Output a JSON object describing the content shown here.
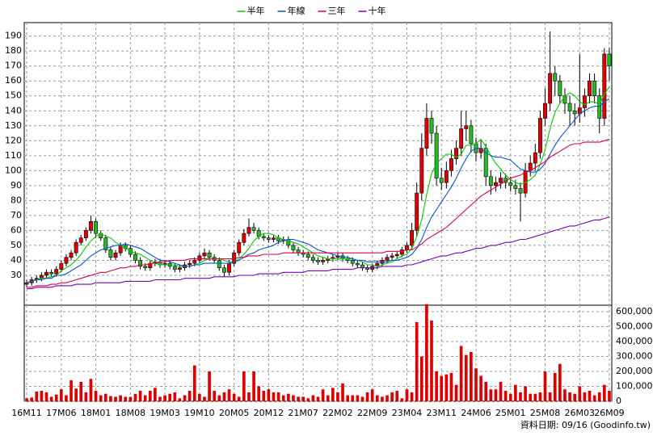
{
  "chart_data": {
    "type": "candlestick",
    "categories": [
      "16M11",
      null,
      null,
      null,
      null,
      null,
      null,
      "17M06",
      null,
      null,
      null,
      null,
      null,
      null,
      "18M01",
      null,
      null,
      null,
      null,
      null,
      null,
      "18M08",
      null,
      null,
      null,
      null,
      null,
      null,
      "19M03",
      null,
      null,
      null,
      null,
      null,
      null,
      "19M10",
      null,
      null,
      null,
      null,
      null,
      null,
      "20M05",
      null,
      null,
      null,
      null,
      null,
      null,
      "20M12",
      null,
      null,
      null,
      null,
      null,
      null,
      "21M07",
      null,
      null,
      null,
      null,
      null,
      null,
      "22M02",
      null,
      null,
      null,
      null,
      null,
      null,
      "22M09",
      null,
      null,
      null,
      null,
      null,
      null,
      "23M04",
      null,
      null,
      null,
      null,
      null,
      null,
      "23M11",
      null,
      null,
      null,
      null,
      null,
      null,
      "24M06",
      null,
      null,
      null,
      null,
      null,
      null,
      "25M01",
      null,
      null,
      null,
      null,
      null,
      null,
      "25M08",
      null,
      null,
      null,
      null,
      null,
      null,
      "26M03",
      null,
      null,
      null,
      null,
      null,
      "26M09"
    ],
    "open": [
      24,
      25,
      27,
      28,
      30,
      32,
      31,
      34,
      38,
      42,
      45,
      52,
      55,
      60,
      66,
      58,
      55,
      47,
      42,
      45,
      50,
      48,
      44,
      40,
      36,
      35,
      38,
      39,
      37,
      38,
      36,
      34,
      35,
      37,
      38,
      40,
      43,
      45,
      42,
      40,
      35,
      32,
      38,
      45,
      52,
      58,
      62,
      60,
      56,
      55,
      54,
      55,
      53,
      54,
      50,
      47,
      45,
      44,
      42,
      40,
      39,
      40,
      41,
      42,
      43,
      41,
      40,
      38,
      37,
      35,
      34,
      36,
      38,
      40,
      42,
      43,
      44,
      47,
      50,
      60,
      85,
      115,
      135,
      125,
      95,
      92,
      100,
      108,
      115,
      128,
      130,
      118,
      112,
      115,
      96,
      90,
      92,
      95,
      92,
      90,
      88,
      85,
      100,
      105,
      112,
      135,
      145,
      165,
      160,
      150,
      145,
      140,
      138,
      142,
      150,
      160,
      150,
      135,
      178
    ],
    "high": [
      27,
      29,
      30,
      32,
      34,
      34,
      36,
      40,
      44,
      47,
      54,
      57,
      62,
      70,
      68,
      60,
      57,
      49,
      47,
      52,
      52,
      50,
      46,
      42,
      38,
      40,
      41,
      41,
      40,
      40,
      38,
      37,
      39,
      40,
      42,
      45,
      48,
      47,
      44,
      42,
      37,
      40,
      47,
      54,
      61,
      68,
      65,
      62,
      58,
      57,
      57,
      57,
      56,
      56,
      52,
      49,
      47,
      46,
      44,
      42,
      42,
      43,
      44,
      45,
      45,
      43,
      42,
      40,
      39,
      37,
      38,
      40,
      42,
      44,
      45,
      46,
      49,
      52,
      65,
      92,
      125,
      145,
      140,
      130,
      102,
      106,
      114,
      120,
      140,
      140,
      134,
      122,
      120,
      118,
      100,
      96,
      99,
      98,
      96,
      94,
      92,
      105,
      110,
      118,
      140,
      155,
      193,
      170,
      164,
      155,
      150,
      145,
      178,
      155,
      165,
      165,
      155,
      182,
      182
    ],
    "low": [
      22,
      23,
      25,
      26,
      28,
      29,
      29,
      32,
      36,
      40,
      43,
      50,
      53,
      58,
      55,
      53,
      45,
      40,
      40,
      43,
      46,
      42,
      38,
      34,
      33,
      33,
      36,
      35,
      35,
      34,
      32,
      32,
      33,
      35,
      36,
      38,
      41,
      40,
      38,
      33,
      29,
      30,
      36,
      43,
      50,
      56,
      58,
      54,
      53,
      52,
      52,
      51,
      51,
      48,
      45,
      43,
      42,
      40,
      38,
      37,
      37,
      38,
      39,
      40,
      39,
      38,
      36,
      35,
      33,
      32,
      32,
      34,
      36,
      38,
      40,
      41,
      42,
      45,
      47,
      56,
      80,
      110,
      118,
      90,
      87,
      88,
      96,
      104,
      110,
      120,
      112,
      106,
      108,
      90,
      84,
      86,
      88,
      88,
      86,
      84,
      66,
      82,
      96,
      100,
      108,
      130,
      140,
      150,
      145,
      138,
      130,
      130,
      132,
      136,
      145,
      145,
      125,
      130,
      160
    ],
    "close": [
      25,
      27,
      28,
      30,
      32,
      31,
      34,
      38,
      42,
      45,
      52,
      55,
      60,
      66,
      58,
      55,
      47,
      42,
      45,
      50,
      48,
      44,
      40,
      36,
      35,
      38,
      39,
      37,
      38,
      36,
      34,
      35,
      37,
      38,
      40,
      43,
      45,
      42,
      40,
      35,
      32,
      38,
      45,
      52,
      58,
      62,
      60,
      56,
      55,
      54,
      55,
      53,
      54,
      50,
      47,
      45,
      44,
      42,
      40,
      39,
      40,
      41,
      42,
      43,
      41,
      40,
      38,
      37,
      35,
      34,
      36,
      38,
      40,
      42,
      43,
      44,
      47,
      50,
      60,
      85,
      115,
      135,
      125,
      95,
      92,
      100,
      108,
      115,
      128,
      130,
      118,
      112,
      115,
      96,
      90,
      92,
      95,
      92,
      90,
      88,
      85,
      100,
      105,
      112,
      135,
      145,
      165,
      160,
      150,
      145,
      140,
      138,
      142,
      150,
      160,
      150,
      135,
      178,
      170
    ],
    "up_color": "#e00000",
    "down_color": "#22bb22",
    "series": [
      {
        "name": "半年",
        "color": "#00cc00",
        "values": [
          25,
          26,
          27,
          28,
          28,
          29,
          30,
          33,
          35,
          37,
          40,
          44,
          49,
          53,
          56,
          58,
          56,
          55,
          52,
          50,
          48,
          46,
          45,
          44,
          42,
          40,
          38,
          37,
          37,
          37,
          37,
          36,
          36,
          36,
          37,
          38,
          40,
          41,
          41,
          41,
          40,
          39,
          39,
          41,
          44,
          48,
          53,
          56,
          58,
          58,
          57,
          55,
          54,
          53,
          52,
          51,
          49,
          47,
          45,
          43,
          42,
          41,
          41,
          41,
          41,
          41,
          41,
          40,
          39,
          37,
          37,
          36,
          37,
          38,
          39,
          41,
          43,
          44,
          48,
          56,
          67,
          84,
          98,
          105,
          108,
          111,
          111,
          109,
          111,
          117,
          117,
          118,
          121,
          116,
          110,
          105,
          101,
          97,
          94,
          92,
          91,
          92,
          94,
          97,
          104,
          114,
          128,
          139,
          145,
          150,
          152,
          150,
          146,
          144,
          146,
          146,
          144,
          151,
          156
        ]
      },
      {
        "name": "年線",
        "color": "#0055dd",
        "values": [
          25,
          26,
          27,
          27,
          28,
          28,
          30,
          30,
          31,
          33,
          35,
          37,
          40,
          43,
          45,
          47,
          48,
          49,
          50,
          50,
          51,
          50,
          49,
          48,
          46,
          44,
          42,
          40,
          40,
          39,
          38,
          37,
          36,
          36,
          37,
          37,
          38,
          38,
          38,
          38,
          38,
          38,
          39,
          40,
          42,
          44,
          45,
          47,
          48,
          49,
          50,
          52,
          53,
          54,
          54,
          53,
          52,
          51,
          49,
          47,
          46,
          45,
          44,
          43,
          42,
          42,
          41,
          40,
          40,
          39,
          39,
          39,
          39,
          39,
          40,
          40,
          41,
          42,
          44,
          48,
          54,
          62,
          69,
          74,
          79,
          84,
          89,
          95,
          102,
          108,
          113,
          115,
          115,
          112,
          110,
          109,
          109,
          108,
          107,
          104,
          101,
          100,
          99,
          99,
          101,
          105,
          111,
          117,
          122,
          126,
          130,
          134,
          138,
          140,
          142,
          143,
          143,
          146,
          148
        ]
      },
      {
        "name": "三年",
        "color": "#dd0044",
        "values": [
          22,
          22,
          23,
          23,
          23,
          24,
          24,
          25,
          25,
          26,
          27,
          28,
          29,
          30,
          31,
          32,
          32,
          33,
          34,
          35,
          35,
          36,
          36,
          37,
          37,
          38,
          38,
          39,
          39,
          40,
          40,
          40,
          40,
          41,
          41,
          41,
          41,
          41,
          41,
          41,
          41,
          41,
          41,
          42,
          42,
          43,
          43,
          43,
          44,
          44,
          44,
          44,
          45,
          45,
          45,
          45,
          45,
          45,
          45,
          45,
          45,
          45,
          45,
          45,
          45,
          45,
          45,
          45,
          45,
          45,
          45,
          45,
          45,
          46,
          46,
          46,
          46,
          47,
          47,
          49,
          51,
          54,
          56,
          58,
          60,
          62,
          65,
          68,
          71,
          74,
          77,
          80,
          83,
          85,
          87,
          89,
          91,
          93,
          95,
          96,
          97,
          99,
          100,
          102,
          104,
          106,
          109,
          111,
          113,
          115,
          117,
          118,
          118,
          119,
          119,
          119,
          119,
          120,
          121
        ]
      },
      {
        "name": "十年",
        "color": "#7700bb",
        "values": [
          21,
          21,
          22,
          22,
          22,
          22,
          23,
          23,
          23,
          23,
          24,
          24,
          24,
          24,
          25,
          25,
          25,
          25,
          25,
          25,
          26,
          26,
          26,
          26,
          26,
          26,
          27,
          27,
          27,
          27,
          27,
          27,
          28,
          28,
          28,
          28,
          28,
          28,
          29,
          29,
          29,
          29,
          29,
          30,
          30,
          30,
          30,
          31,
          31,
          31,
          31,
          31,
          32,
          32,
          32,
          32,
          32,
          33,
          33,
          33,
          33,
          33,
          34,
          34,
          34,
          34,
          34,
          35,
          35,
          35,
          35,
          35,
          36,
          36,
          36,
          36,
          36,
          37,
          37,
          38,
          39,
          40,
          41,
          42,
          43,
          43,
          44,
          45,
          45,
          46,
          47,
          48,
          48,
          49,
          50,
          50,
          51,
          52,
          52,
          53,
          54,
          54,
          55,
          56,
          57,
          58,
          59,
          60,
          61,
          62,
          63,
          63,
          64,
          65,
          66,
          67,
          67,
          68,
          69
        ]
      }
    ],
    "ylim": [
      10,
      199
    ],
    "yticks": [
      30,
      40,
      50,
      60,
      70,
      80,
      90,
      100,
      110,
      120,
      130,
      140,
      150,
      160,
      170,
      180,
      190
    ],
    "grid": true,
    "legend": "top",
    "volume": {
      "color": "#dd0000",
      "values": [
        20000,
        25000,
        65000,
        70000,
        60000,
        30000,
        45000,
        80000,
        40000,
        140000,
        85000,
        130000,
        60000,
        150000,
        70000,
        40000,
        50000,
        35000,
        30000,
        40000,
        30000,
        30000,
        50000,
        70000,
        40000,
        70000,
        90000,
        30000,
        40000,
        50000,
        60000,
        20000,
        40000,
        70000,
        240000,
        50000,
        30000,
        200000,
        70000,
        40000,
        60000,
        80000,
        50000,
        30000,
        200000,
        60000,
        200000,
        100000,
        70000,
        80000,
        60000,
        60000,
        40000,
        50000,
        40000,
        30000,
        30000,
        20000,
        40000,
        30000,
        80000,
        40000,
        90000,
        60000,
        120000,
        40000,
        40000,
        40000,
        30000,
        60000,
        80000,
        40000,
        30000,
        40000,
        60000,
        70000,
        20000,
        80000,
        60000,
        530000,
        300000,
        650000,
        540000,
        200000,
        170000,
        180000,
        190000,
        110000,
        370000,
        310000,
        330000,
        220000,
        170000,
        130000,
        80000,
        80000,
        130000,
        70000,
        50000,
        110000,
        60000,
        100000,
        50000,
        50000,
        60000,
        200000,
        60000,
        190000,
        250000,
        80000,
        60000,
        50000,
        100000,
        60000,
        70000,
        40000,
        60000,
        110000,
        70000
      ],
      "ylim": [
        0,
        643000
      ],
      "yticks": [
        0,
        {
          "value": 100000,
          "label": "100,000"
        },
        {
          "value": 200000,
          "label": "200,000"
        },
        {
          "value": 300000,
          "label": "300,000"
        },
        {
          "value": 400000,
          "label": "400,000"
        },
        {
          "value": 500000,
          "label": "500,000"
        },
        {
          "value": 600000,
          "label": "600,000"
        }
      ]
    },
    "footer": "資料日期: 09/16 (Goodinfo.tw)"
  }
}
